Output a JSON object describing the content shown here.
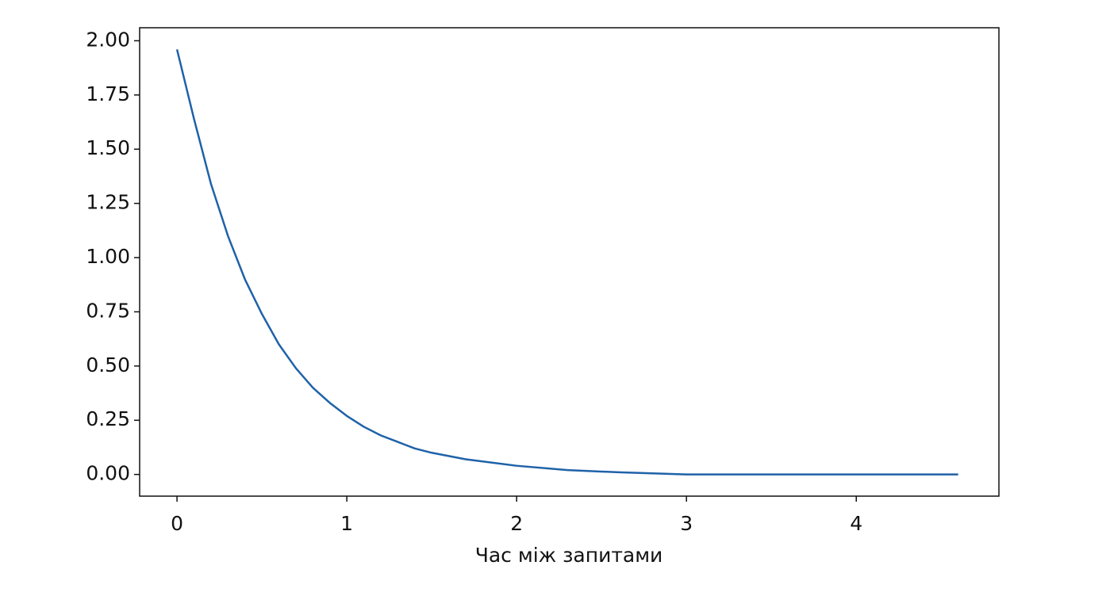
{
  "chart_data": {
    "type": "line",
    "x": [
      0,
      0.1,
      0.2,
      0.3,
      0.4,
      0.5,
      0.6,
      0.7,
      0.8,
      0.9,
      1.0,
      1.1,
      1.2,
      1.3,
      1.4,
      1.5,
      1.7,
      2.0,
      2.3,
      2.6,
      3.0,
      3.5,
      4.0,
      4.6
    ],
    "series": [
      {
        "color": "#1f62a8",
        "values": [
          1.96,
          1.64,
          1.34,
          1.1,
          0.9,
          0.74,
          0.6,
          0.49,
          0.4,
          0.33,
          0.27,
          0.22,
          0.18,
          0.15,
          0.12,
          0.1,
          0.07,
          0.04,
          0.02,
          0.01,
          0.0,
          0.0,
          0.0,
          0.0
        ]
      }
    ],
    "xlabel": "Час між запитами",
    "xlim": [
      -0.22,
      4.84
    ],
    "ylim": [
      -0.1,
      2.06
    ],
    "xticks": [
      0,
      1,
      2,
      3,
      4
    ],
    "yticks": [
      {
        "value": 0,
        "label": "0.00"
      },
      {
        "value": 0.25,
        "label": "0.25"
      },
      {
        "value": 0.5,
        "label": "0.50"
      },
      {
        "value": 0.75,
        "label": "0.75"
      },
      {
        "value": 1,
        "label": "1.00"
      },
      {
        "value": 1.25,
        "label": "1.25"
      },
      {
        "value": 1.5,
        "label": "1.50"
      },
      {
        "value": 1.75,
        "label": "1.75"
      },
      {
        "value": 2,
        "label": "2.00"
      }
    ],
    "grid": false
  }
}
